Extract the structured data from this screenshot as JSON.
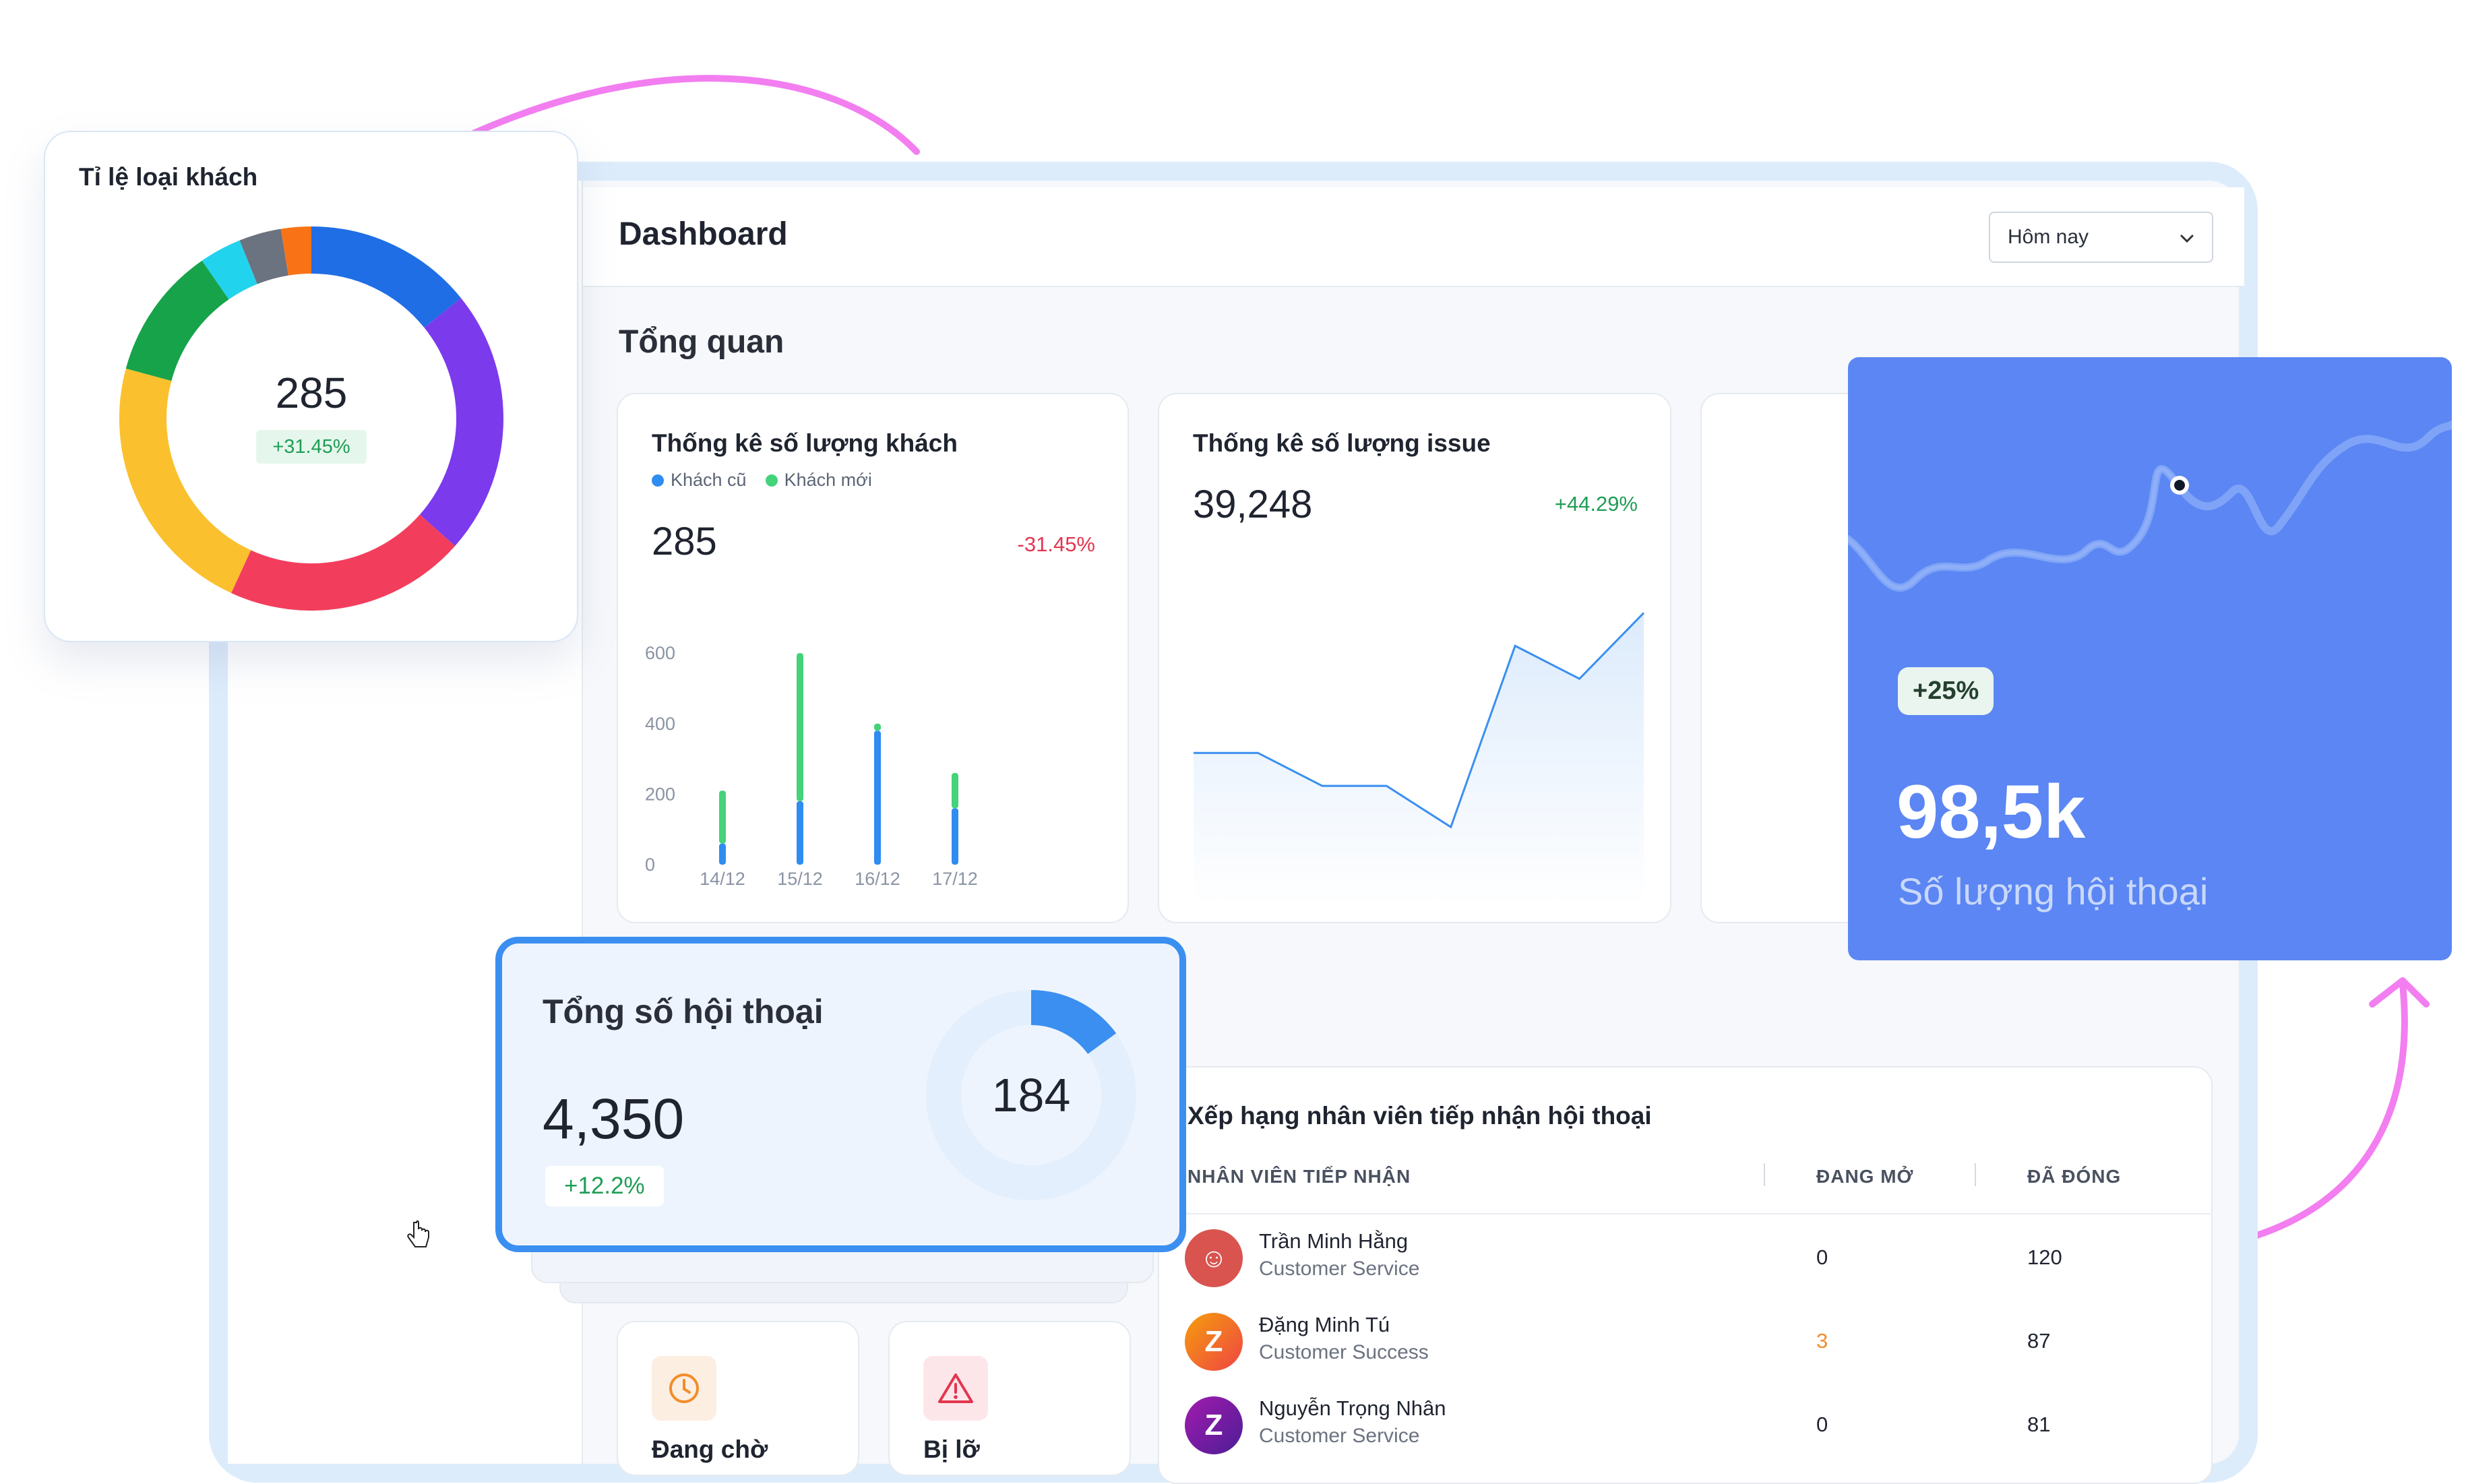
{
  "dashboard": {
    "title": "Dashboard",
    "date_filter": "Hôm nay"
  },
  "overview_title": "Tổng quan",
  "customer_stats": {
    "title": "Thống kê số lượng khách",
    "legend": [
      "Khách cũ",
      "Khách mới"
    ],
    "value": "285",
    "change": "-31.45%"
  },
  "issue_stats": {
    "title": "Thống kê số lượng issue",
    "value": "39,248",
    "change": "+44.29%"
  },
  "customer_type_ratio": {
    "title": "Tỉ lệ loại khách",
    "value": "285",
    "change": "+31.45%"
  },
  "conversation_total": {
    "title": "Tổng số hội thoại",
    "value": "4,350",
    "change": "+12.2%",
    "ring_value": "184"
  },
  "conversation_count": {
    "badge": "+25%",
    "value": "98,5k",
    "label": "Số lượng hội thoại"
  },
  "ranking": {
    "title": "Xếp hạng nhân viên tiếp nhận hội thoại",
    "columns": [
      "NHÂN VIÊN TIẾP NHẬN",
      "ĐANG MỞ",
      "ĐÃ ĐÓNG"
    ],
    "rows": [
      {
        "name": "Trần Minh Hằng",
        "role": "Customer Service",
        "open": "0",
        "closed": "120"
      },
      {
        "name": "Đặng Minh Tú",
        "role": "Customer Success",
        "open": "3",
        "closed": "87"
      },
      {
        "name": "Nguyễn Trọng Nhân",
        "role": "Customer Service",
        "open": "0",
        "closed": "81"
      }
    ]
  },
  "status_cards": [
    {
      "label": "Đang chờ",
      "icon": "clock-icon"
    },
    {
      "label": "Bị lỡ",
      "icon": "warning-icon"
    }
  ],
  "colors": {
    "accent_blue": "#3b8ff0",
    "green": "#44d27a",
    "panel_blue": "#5b86f3",
    "negative": "#e2364f",
    "positive": "#1f9d55",
    "arrow_pink": "#f27ef0"
  },
  "chart_data": [
    {
      "type": "bar",
      "title": "Thống kê số lượng khách",
      "categories": [
        "14/12",
        "15/12",
        "16/12",
        "17/12"
      ],
      "series": [
        {
          "name": "Khách cũ",
          "values": [
            60,
            180,
            380,
            160
          ]
        },
        {
          "name": "Khách mới",
          "values": [
            150,
            420,
            20,
            100
          ]
        }
      ],
      "yticks": [
        0,
        200,
        400,
        600
      ],
      "ylim": [
        0,
        650
      ],
      "stacked": true
    },
    {
      "type": "area",
      "title": "Thống kê số lượng issue",
      "values": [
        470,
        470,
        430,
        430,
        380,
        600,
        560,
        640
      ]
    },
    {
      "type": "pie",
      "title": "Tỉ lệ loại khách",
      "slices": [
        {
          "value": 14,
          "color": "#1f6ee6"
        },
        {
          "value": 22,
          "color": "#7c3aed"
        },
        {
          "value": 20,
          "color": "#f23e5c"
        },
        {
          "value": 22,
          "color": "#fbc02d"
        },
        {
          "value": 11,
          "color": "#16a34a"
        },
        {
          "value": 3.5,
          "color": "#22d3ee"
        },
        {
          "value": 3.5,
          "color": "#6b7280"
        },
        {
          "value": 2.5,
          "color": "#f97316"
        }
      ]
    },
    {
      "type": "pie",
      "title": "Tổng số hội thoại",
      "slices": [
        {
          "value": 15,
          "color": "#3b8ff0"
        },
        {
          "value": 85,
          "color": "#e3effd"
        }
      ]
    }
  ]
}
